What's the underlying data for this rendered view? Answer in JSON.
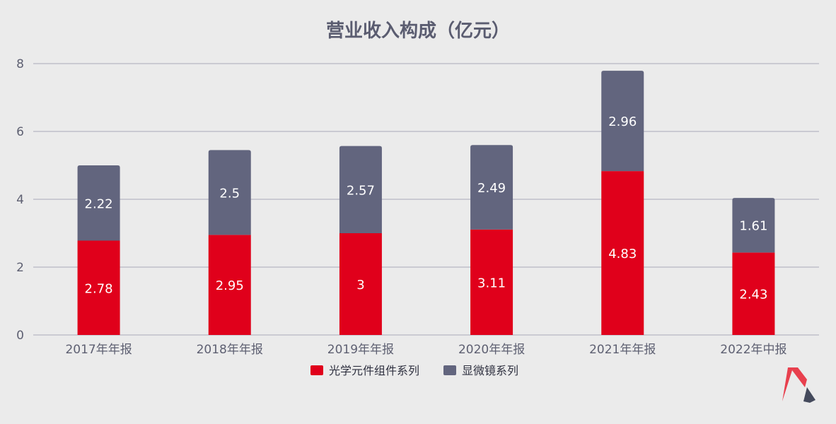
{
  "chart_data": {
    "type": "bar",
    "stacked": true,
    "title": "营业收入构成（亿元）",
    "xlabel": "",
    "ylabel": "",
    "categories": [
      "2017年年报",
      "2018年年报",
      "2019年年报",
      "2020年年报",
      "2021年年报",
      "2022年中报"
    ],
    "series": [
      {
        "name": "光学元件组件系列",
        "values": [
          2.78,
          2.95,
          3,
          3.11,
          4.83,
          2.43
        ],
        "labels": [
          "2.78",
          "2.95",
          "3",
          "3.11",
          "4.83",
          "2.43"
        ],
        "color": "#e0001b"
      },
      {
        "name": "显微镜系列",
        "values": [
          2.22,
          2.5,
          2.57,
          2.49,
          2.96,
          1.61
        ],
        "labels": [
          "2.22",
          "2.5",
          "2.57",
          "2.49",
          "2.96",
          "1.61"
        ],
        "color": "#62657e"
      }
    ],
    "ylim": [
      0,
      8
    ],
    "yticks": [
      0,
      2,
      4,
      6,
      8
    ],
    "grid": true,
    "legend_position": "bottom-center"
  },
  "colors": {
    "background": "#ebebeb",
    "title": "#5a5c70",
    "axis_text": "#5e6072",
    "grid": "#a9aab8",
    "logo_red": "#e8404e",
    "logo_dark": "#444a5c"
  },
  "logo": {
    "icon": "brand-m-logo-icon"
  }
}
